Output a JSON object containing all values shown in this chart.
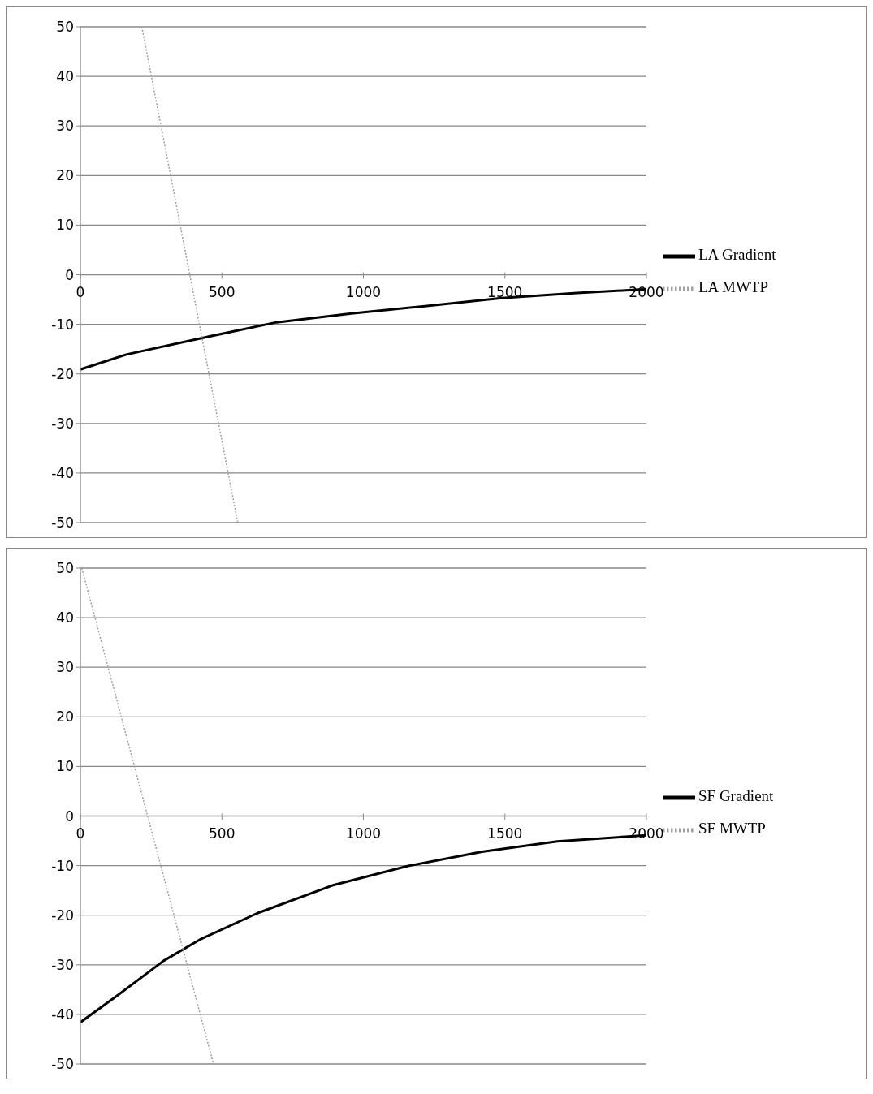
{
  "chart_data": [
    {
      "type": "line",
      "xlim": [
        0,
        2000
      ],
      "xticks": [
        0,
        500,
        1000,
        1500,
        2000
      ],
      "ylim": [
        -50,
        50
      ],
      "yticks": [
        -50,
        -40,
        -30,
        -20,
        -10,
        0,
        10,
        20,
        30,
        40,
        50
      ],
      "grid": "y",
      "legend": "right",
      "marker": "none",
      "series": [
        {
          "name": "LA Gradient",
          "color": "#000000",
          "line_style": "solid",
          "x": [
            0,
            162,
            427,
            693,
            958,
            1224,
            1489,
            1755,
            2000
          ],
          "values": [
            -19.1,
            -16.1,
            -12.8,
            -9.6,
            -7.8,
            -6.3,
            -4.7,
            -3.7,
            -2.9
          ]
        },
        {
          "name": "LA MWTP",
          "color": "#a0a0a0",
          "line_style": "dotted",
          "x": [
            217,
            556
          ],
          "values": [
            50,
            -50
          ]
        }
      ]
    },
    {
      "type": "line",
      "xlim": [
        0,
        2000
      ],
      "xticks": [
        0,
        500,
        1000,
        1500,
        2000
      ],
      "ylim": [
        -50,
        50
      ],
      "yticks": [
        -50,
        -40,
        -30,
        -20,
        -10,
        0,
        10,
        20,
        30,
        40,
        50
      ],
      "grid": "y",
      "legend": "right",
      "marker": "none",
      "series": [
        {
          "name": "SF Gradient",
          "color": "#000000",
          "line_style": "solid",
          "x": [
            0,
            135,
            294,
            426,
            625,
            890,
            1155,
            1419,
            1685,
            2000
          ],
          "values": [
            -41.6,
            -36.0,
            -29.2,
            -24.8,
            -19.6,
            -14.0,
            -10.1,
            -7.2,
            -5.1,
            -3.9
          ]
        },
        {
          "name": "SF MWTP",
          "color": "#a0a0a0",
          "line_style": "dotted",
          "x": [
            5,
            470
          ],
          "values": [
            50,
            -50
          ]
        }
      ]
    }
  ]
}
